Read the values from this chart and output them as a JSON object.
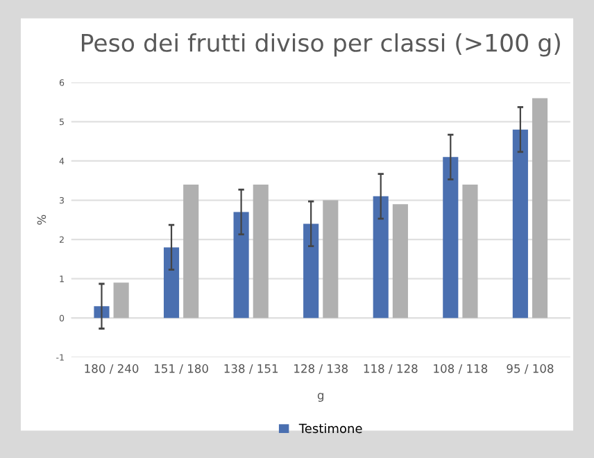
{
  "chart_data": {
    "type": "bar",
    "title": "Peso dei frutti diviso per classi (>100 g)",
    "xlabel": "g",
    "ylabel": "%",
    "categories": [
      "180 / 240",
      "151 / 180",
      "138 / 151",
      "128 / 138",
      "118 / 128",
      "108 / 118",
      "95 / 108"
    ],
    "series": [
      {
        "name": "Testimone",
        "color": "#4a6fb0",
        "values": [
          0.3,
          1.8,
          2.7,
          2.4,
          3.1,
          4.1,
          4.8
        ],
        "errors": [
          0.57,
          0.57,
          0.57,
          0.57,
          0.57,
          0.57,
          0.57
        ]
      },
      {
        "color": "#b0b0b0",
        "values": [
          0.9,
          3.4,
          3.4,
          3.0,
          2.9,
          3.4,
          5.6
        ]
      }
    ],
    "ylim": [
      -1,
      6
    ],
    "yticks": [
      -1,
      0,
      1,
      2,
      3,
      4,
      5,
      6
    ],
    "grid": "y",
    "legend": "bottom"
  }
}
